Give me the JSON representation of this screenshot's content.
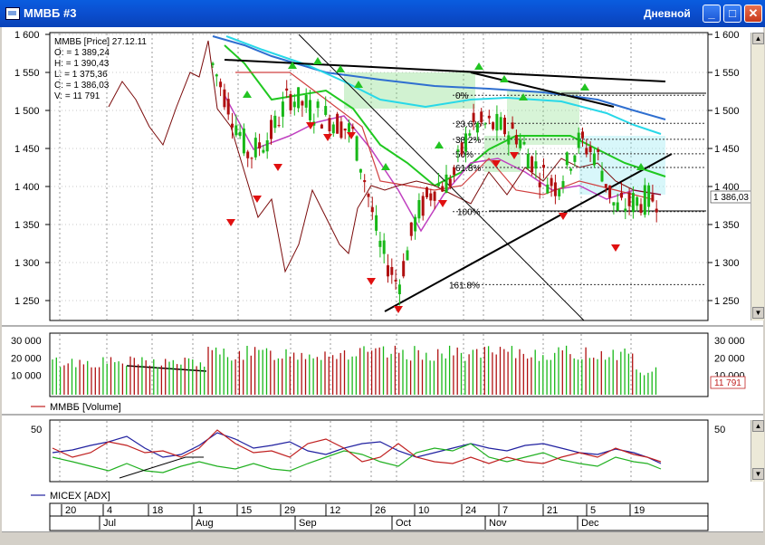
{
  "window": {
    "title": "ММВБ #3",
    "period": "Дневной",
    "minimize_glyph": "_",
    "maximize_glyph": "□",
    "close_glyph": "✕"
  },
  "price_panel": {
    "legend_lines": [
      "ММВБ [Price] 27.12.11",
      "O: = 1 389,24",
      "H: = 1 390,43",
      "L: = 1 375,36",
      "C: = 1 386,03",
      "V: = 11 791"
    ],
    "y_ticks": [
      {
        "label": "1 600",
        "value": 1600
      },
      {
        "label": "1 550",
        "value": 1550
      },
      {
        "label": "1 500",
        "value": 1500
      },
      {
        "label": "1 450",
        "value": 1450
      },
      {
        "label": "1 400",
        "value": 1400
      },
      {
        "label": "1 350",
        "value": 1350
      },
      {
        "label": "1 300",
        "value": 1300
      },
      {
        "label": "1 250",
        "value": 1250
      }
    ],
    "last_price_label": "1 386,03",
    "fib_labels": [
      {
        "label": "0%",
        "level": 1520
      },
      {
        "label": "23.6%",
        "level": 1483
      },
      {
        "label": "38.2%",
        "level": 1462
      },
      {
        "label": "50%",
        "level": 1443
      },
      {
        "label": "61.8%",
        "level": 1425
      },
      {
        "label": "100%",
        "level": 1367
      },
      {
        "label": "161.8%",
        "level": 1271
      }
    ]
  },
  "volume_panel": {
    "legend": "ММВБ [Volume]",
    "y_ticks": [
      {
        "label": "30 000",
        "value": 30000
      },
      {
        "label": "20 000",
        "value": 20000
      },
      {
        "label": "10 000",
        "value": 10000
      }
    ],
    "last_volume_label": "11 791"
  },
  "adx_panel": {
    "legend": "MICEX [ADX]",
    "y_ticks": [
      {
        "label": "50",
        "value": 50
      }
    ]
  },
  "time_axis": {
    "day_labels": [
      "20",
      "4",
      "18",
      "1",
      "15",
      "29",
      "12",
      "26",
      "10",
      "24",
      "7",
      "21",
      "5",
      "19"
    ],
    "month_labels": [
      "Jul",
      "Aug",
      "Sep",
      "Oct",
      "Nov",
      "Dec"
    ]
  },
  "colors": {
    "up_candle": "#18b818",
    "down_candle": "#b01010",
    "grid": "#999999",
    "resistance": "#000000",
    "ma_green": "#20c820",
    "ma_cyan": "#28d8e8",
    "ma_blue": "#2f6fd0",
    "envelope_red": "#d04040",
    "envelope_magenta": "#c040c0",
    "close_line": "#7a0a0a",
    "adx_line": "#2020a0",
    "dmi_plus": "#20b020",
    "dmi_minus": "#c02020"
  }
}
